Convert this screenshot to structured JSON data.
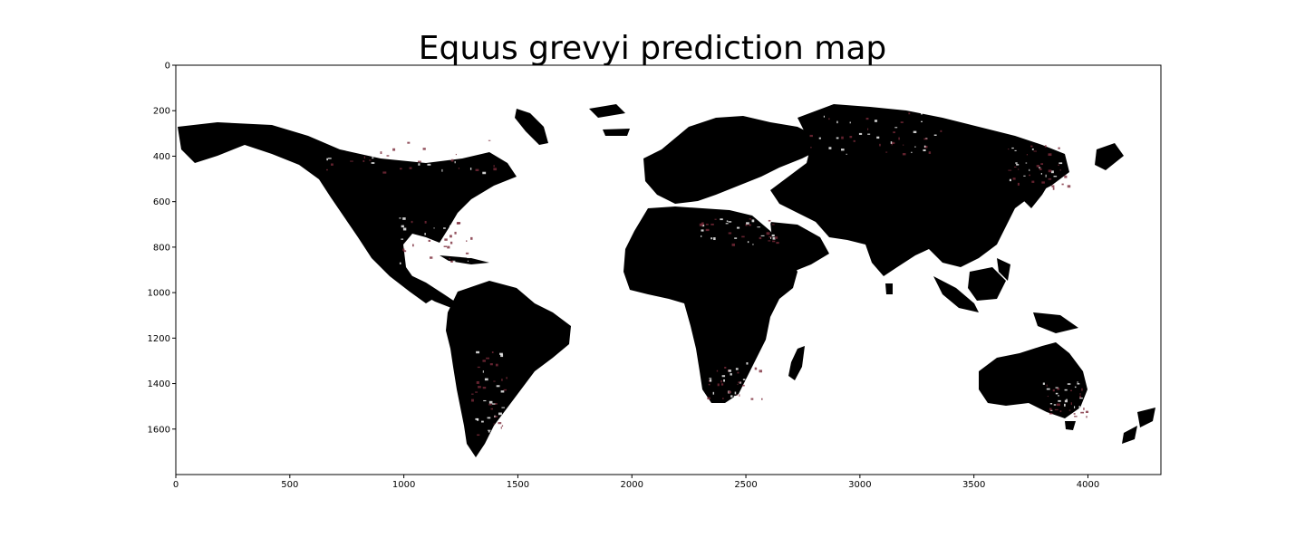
{
  "figure": {
    "title": "Equus grevyi prediction map"
  },
  "map": {
    "land_color": "#000000",
    "ocean_color": "#ffffff",
    "uncertain_color": "#7a2a3a",
    "x_axis": {
      "range": [
        0,
        4320
      ],
      "ticks": [
        "0",
        "500",
        "1000",
        "1500",
        "2000",
        "2500",
        "3000",
        "3500",
        "4000"
      ]
    },
    "y_axis": {
      "range": [
        0,
        1800
      ],
      "inverted": true,
      "ticks": [
        "0",
        "200",
        "400",
        "600",
        "800",
        "1000",
        "1200",
        "1400",
        "1600"
      ]
    }
  }
}
